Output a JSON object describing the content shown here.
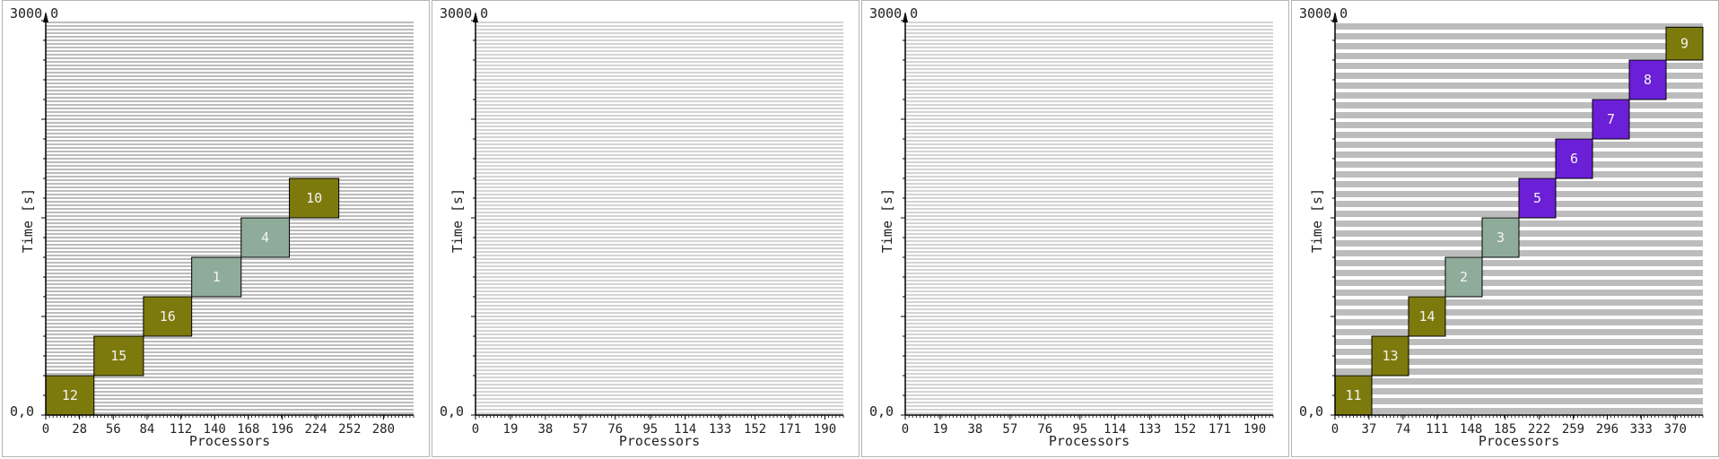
{
  "colors": {
    "stripe_dense": "#bcbcbc",
    "stripe_light": "#d4d4d4",
    "olive": "#7d7a0d",
    "sage": "#8fab9a",
    "purple": "#6b1fd6",
    "job_label": "#f4f4f4",
    "border": "#000000"
  },
  "chart_data": [
    {
      "type": "bar",
      "top_label": "3000,0",
      "origin_label": "0,0",
      "xlabel": "Processors",
      "ylabel": "Time [s]",
      "xlim": [
        0,
        305
      ],
      "ylim": [
        0,
        3000
      ],
      "x_ticks": [
        "0",
        "28",
        "56",
        "84",
        "112",
        "140",
        "168",
        "196",
        "224",
        "252",
        "280"
      ],
      "grid_density": "dense",
      "jobs": [
        {
          "id": "12",
          "x0": 0,
          "x1": 40,
          "t0": 0,
          "t1": 300,
          "color": "olive"
        },
        {
          "id": "15",
          "x0": 40,
          "x1": 81,
          "t0": 300,
          "t1": 600,
          "color": "olive"
        },
        {
          "id": "16",
          "x0": 81,
          "x1": 121,
          "t0": 600,
          "t1": 900,
          "color": "olive"
        },
        {
          "id": "1",
          "x0": 121,
          "x1": 162,
          "t0": 900,
          "t1": 1200,
          "color": "sage"
        },
        {
          "id": "4",
          "x0": 162,
          "x1": 202,
          "t0": 1200,
          "t1": 1500,
          "color": "sage"
        },
        {
          "id": "10",
          "x0": 202,
          "x1": 243,
          "t0": 1500,
          "t1": 1800,
          "color": "olive"
        }
      ]
    },
    {
      "type": "bar",
      "top_label": "3000,0",
      "origin_label": "0,0",
      "xlabel": "Processors",
      "ylabel": "Time [s]",
      "xlim": [
        0,
        200
      ],
      "ylim": [
        0,
        3000
      ],
      "x_ticks": [
        "0",
        "19",
        "38",
        "57",
        "76",
        "95",
        "114",
        "133",
        "152",
        "171",
        "190"
      ],
      "grid_density": "light",
      "jobs": []
    },
    {
      "type": "bar",
      "top_label": "3000,0",
      "origin_label": "0,0",
      "xlabel": "Processors",
      "ylabel": "Time [s]",
      "xlim": [
        0,
        200
      ],
      "ylim": [
        0,
        3000
      ],
      "x_ticks": [
        "0",
        "19",
        "38",
        "57",
        "76",
        "95",
        "114",
        "133",
        "152",
        "171",
        "190"
      ],
      "grid_density": "light",
      "jobs": []
    },
    {
      "type": "bar",
      "top_label": "3000,0",
      "origin_label": "0,0",
      "xlabel": "Processors",
      "ylabel": "Time [s]",
      "xlim": [
        0,
        400
      ],
      "ylim": [
        0,
        3000
      ],
      "x_ticks": [
        "0",
        "37",
        "74",
        "111",
        "148",
        "185",
        "222",
        "259",
        "296",
        "333",
        "370"
      ],
      "grid_density": "wide",
      "jobs": [
        {
          "id": "11",
          "x0": 0,
          "x1": 40,
          "t0": 0,
          "t1": 300,
          "color": "olive"
        },
        {
          "id": "13",
          "x0": 40,
          "x1": 80,
          "t0": 300,
          "t1": 600,
          "color": "olive"
        },
        {
          "id": "14",
          "x0": 80,
          "x1": 120,
          "t0": 600,
          "t1": 900,
          "color": "olive"
        },
        {
          "id": "2",
          "x0": 120,
          "x1": 160,
          "t0": 900,
          "t1": 1200,
          "color": "sage"
        },
        {
          "id": "3",
          "x0": 160,
          "x1": 200,
          "t0": 1200,
          "t1": 1500,
          "color": "sage"
        },
        {
          "id": "5",
          "x0": 200,
          "x1": 240,
          "t0": 1500,
          "t1": 1800,
          "color": "purple"
        },
        {
          "id": "6",
          "x0": 240,
          "x1": 280,
          "t0": 1800,
          "t1": 2100,
          "color": "purple"
        },
        {
          "id": "7",
          "x0": 280,
          "x1": 320,
          "t0": 2100,
          "t1": 2400,
          "color": "purple"
        },
        {
          "id": "8",
          "x0": 320,
          "x1": 360,
          "t0": 2400,
          "t1": 2700,
          "color": "purple"
        },
        {
          "id": "9",
          "x0": 360,
          "x1": 400,
          "t0": 2700,
          "t1": 2950,
          "color": "olive"
        }
      ]
    }
  ]
}
